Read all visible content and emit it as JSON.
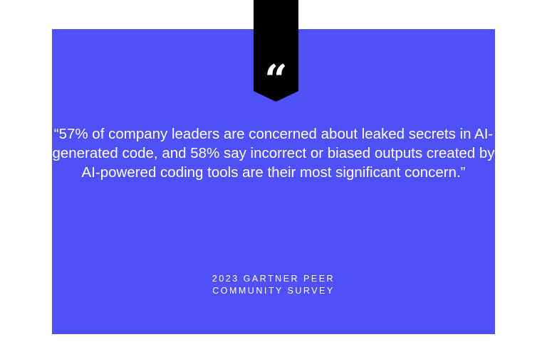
{
  "colors": {
    "card": "#4f50f6",
    "ribbon": "#000000",
    "text": "#ffffff"
  },
  "icon": "quotation-mark-icon",
  "quote_mark": "“",
  "quote": "“57% of company leaders are concerned about leaked secrets in AI-generated code, and 58% say incorrect or biased outputs created by AI-powered coding tools are their most significant concern.”",
  "source": {
    "line1": "2023 GARTNER PEER",
    "line2": "COMMUNITY SURVEY"
  }
}
